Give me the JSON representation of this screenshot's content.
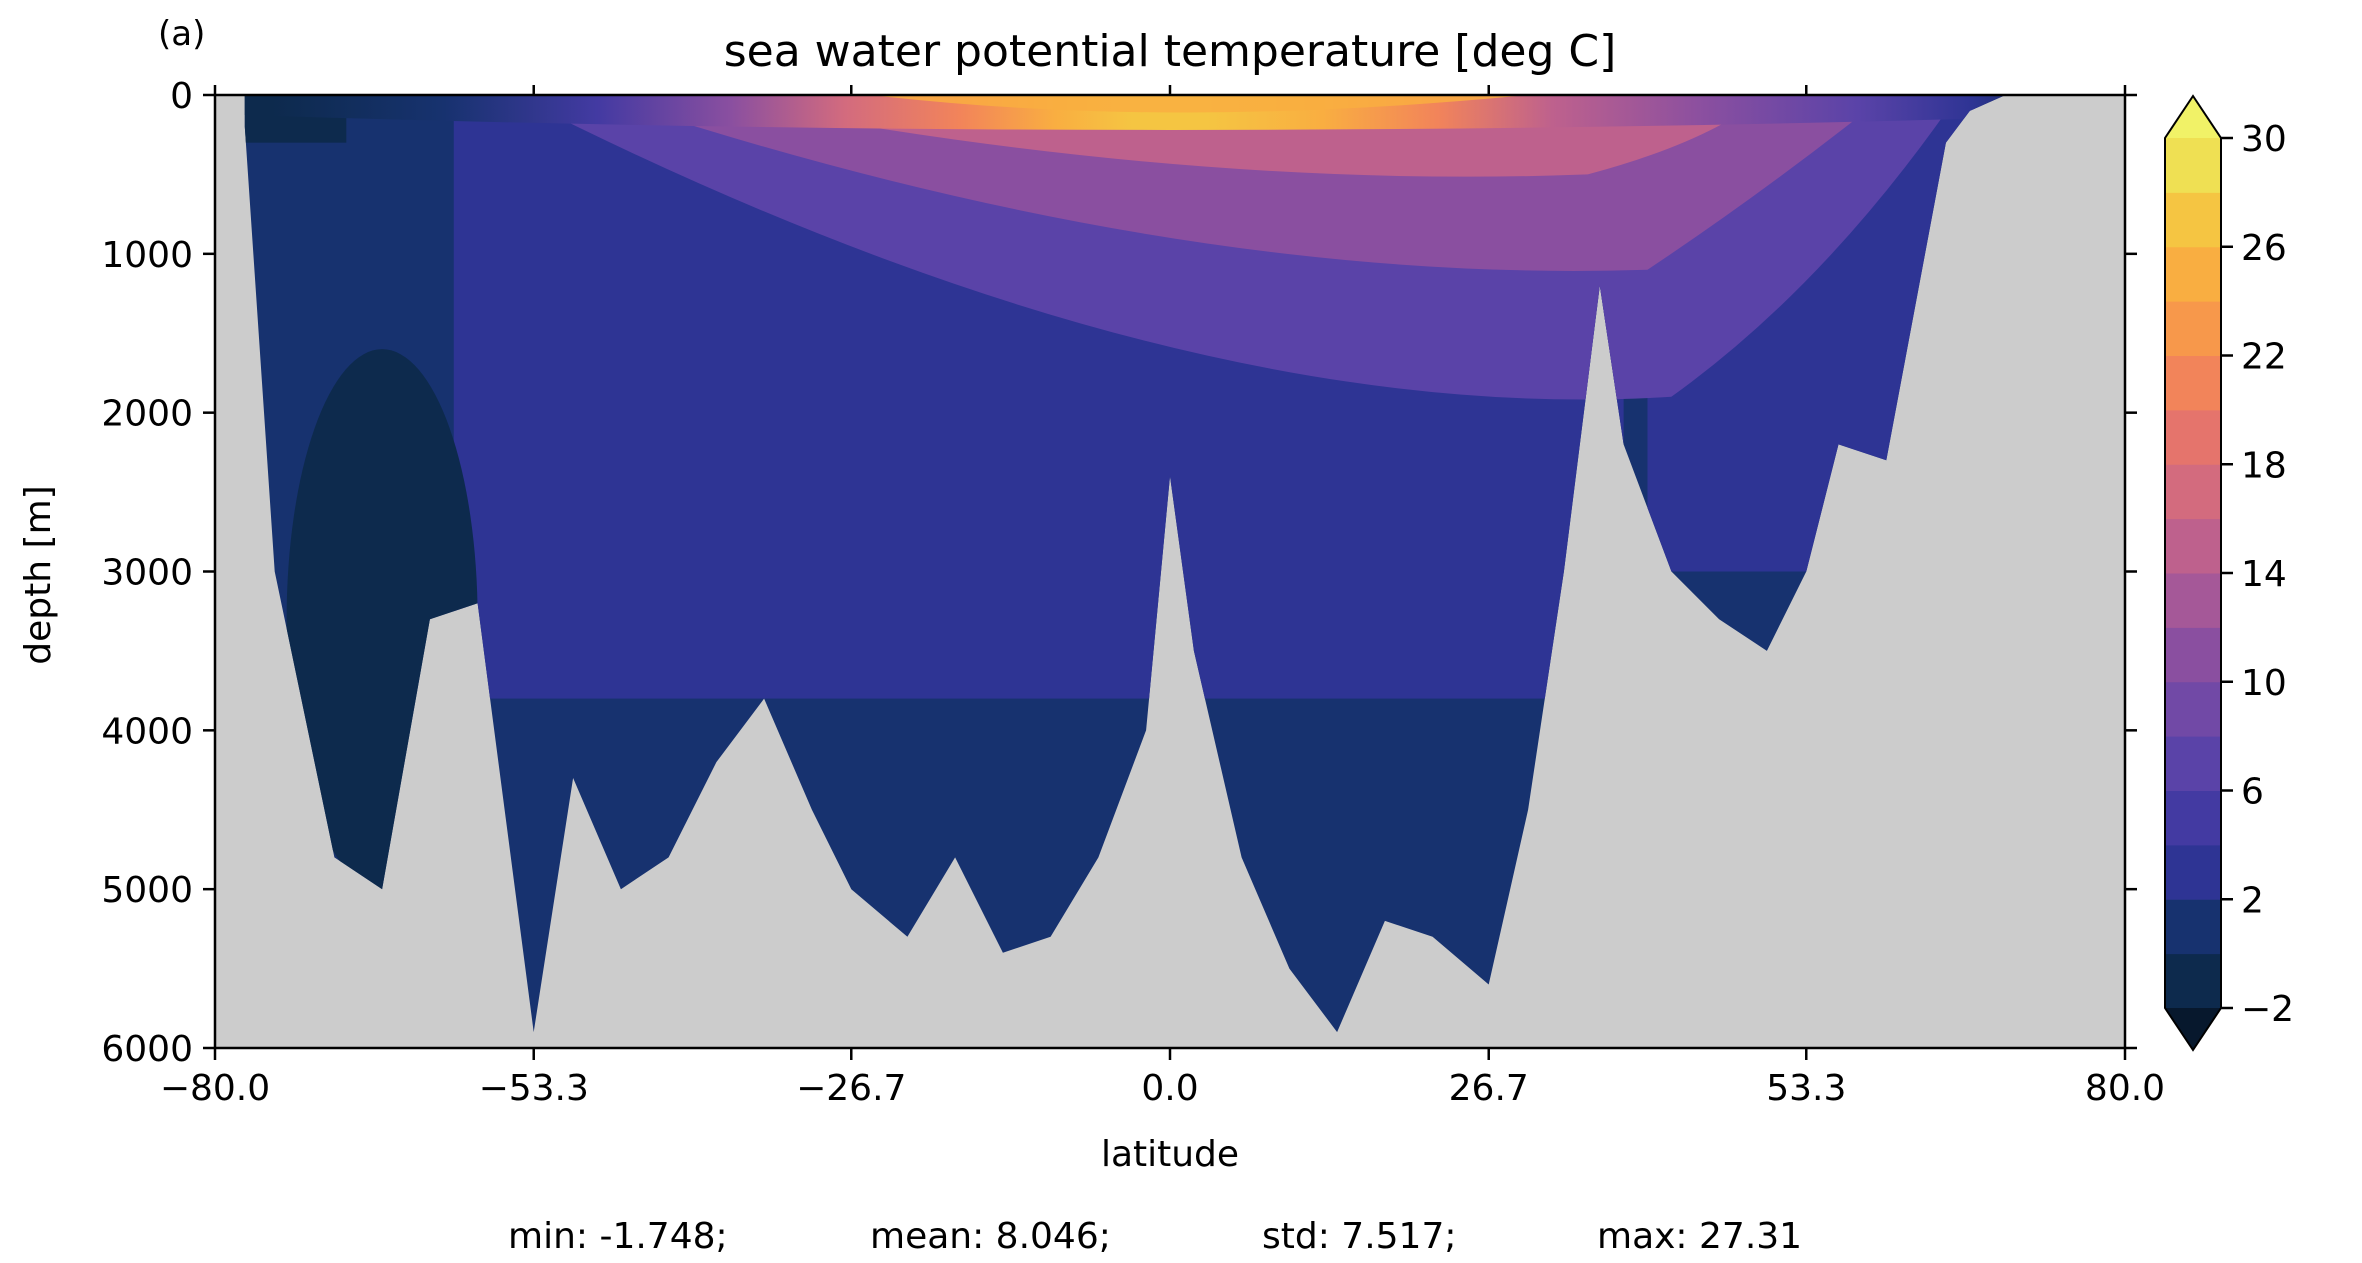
{
  "chart_data": {
    "type": "heatmap",
    "panel_label": "(a)",
    "title": "sea water potential temperature [deg C]",
    "xlabel": "latitude",
    "ylabel": "depth [m]",
    "xlim": [
      -80.0,
      80.0
    ],
    "ylim": [
      6000,
      0
    ],
    "y_inverted": true,
    "x_ticks": [
      -80.0,
      -53.3,
      -26.7,
      0.0,
      26.7,
      53.3,
      80.0
    ],
    "x_tick_labels": [
      "−80.0",
      "−53.3",
      "−26.7",
      "0.0",
      "26.7",
      "53.3",
      "80.0"
    ],
    "y_ticks": [
      0,
      1000,
      2000,
      3000,
      4000,
      5000,
      6000
    ],
    "y_tick_labels": [
      "0",
      "1000",
      "2000",
      "3000",
      "4000",
      "5000",
      "6000"
    ],
    "grid": false,
    "missing_color": "#cccccc",
    "colorbar": {
      "levels": [
        -2,
        0,
        2,
        4,
        6,
        8,
        10,
        12,
        14,
        16,
        18,
        20,
        22,
        24,
        26,
        28,
        30
      ],
      "tick_values": [
        -2,
        2,
        6,
        10,
        14,
        18,
        22,
        26,
        30
      ],
      "tick_labels": [
        "−2",
        "2",
        "6",
        "10",
        "14",
        "18",
        "22",
        "26",
        "30"
      ],
      "extend": "both",
      "colors": [
        "#0d2a4d",
        "#17326f",
        "#2e3494",
        "#433aa2",
        "#5a43a8",
        "#7149a6",
        "#8a4fa0",
        "#a55898",
        "#be618d",
        "#d36b7e",
        "#e5746c",
        "#f2845a",
        "#f7984b",
        "#f9ae41",
        "#f5c542",
        "#efe053"
      ],
      "under_color": "#07182d",
      "over_color": "#f1f267"
    },
    "bottom_profile": {
      "latitude": [
        -77.5,
        -75.0,
        -70.0,
        -66.0,
        -62.0,
        -58.0,
        -53.3,
        -50.0,
        -46.0,
        -42.0,
        -38.0,
        -34.0,
        -30.0,
        -26.7,
        -22.0,
        -18.0,
        -14.0,
        -10.0,
        -6.0,
        -2.0,
        0.0,
        2.0,
        6.0,
        10.0,
        14.0,
        18.0,
        22.0,
        26.7,
        30.0,
        33.0,
        36.0,
        38.0,
        42.0,
        46.0,
        50.0,
        53.3,
        56.0,
        60.0,
        65.0,
        67.0,
        70.0
      ],
      "depth": [
        200,
        3000,
        4800,
        5000,
        3300,
        3200,
        5900,
        4300,
        5000,
        4800,
        4200,
        3800,
        4500,
        5000,
        5300,
        4800,
        5400,
        5300,
        4800,
        4000,
        2400,
        3500,
        4800,
        5500,
        5900,
        5200,
        5300,
        5600,
        4500,
        3000,
        1200,
        2200,
        3000,
        3300,
        3500,
        3000,
        2200,
        2300,
        300,
        100,
        0
      ]
    },
    "temperature_field": {
      "description_levels_deg_c": "surface max near equator ~27, decreasing with depth and latitude",
      "surface_latitude": [
        -80,
        -70,
        -60,
        -50,
        -40,
        -30,
        -20,
        -10,
        0,
        10,
        20,
        30,
        40,
        50,
        60,
        70,
        80
      ],
      "surface_temperature": [
        -1.7,
        -1.5,
        0.5,
        4.0,
        10.0,
        18.0,
        23.0,
        26.0,
        27.3,
        26.5,
        24.5,
        20.0,
        15.0,
        10.0,
        6.0,
        1.0,
        -1.5
      ]
    },
    "stats": {
      "min": "min: -1.748;",
      "mean": "mean: 8.046;",
      "std": "std: 7.517;",
      "max": "max: 27.31"
    }
  }
}
